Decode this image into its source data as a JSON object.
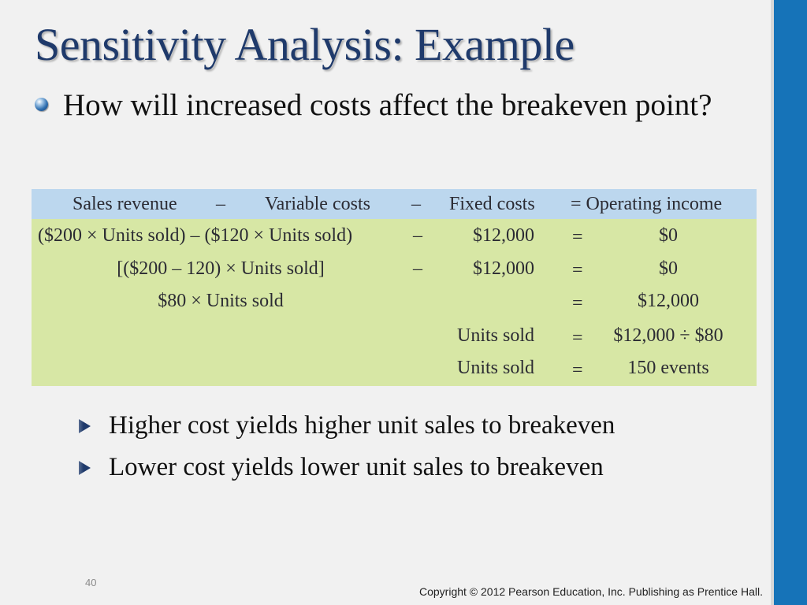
{
  "slide": {
    "title": "Sensitivity Analysis: Example",
    "main_bullet": "How will increased costs affect the breakeven point?",
    "equation_table": {
      "header": {
        "sales_revenue": "Sales revenue",
        "minus1": "–",
        "variable_costs": "Variable costs",
        "minus2": "–",
        "fixed_costs": "Fixed costs",
        "equals_operating": "= Operating income"
      },
      "rows": [
        {
          "left": "($200 × Units sold) – ($120 × Units sold)",
          "minus": "–",
          "fixed": "$12,000",
          "equals": "=",
          "result": "$0"
        },
        {
          "left": "[($200 – 120) × Units sold]",
          "minus": "–",
          "fixed": "$12,000",
          "equals": "=",
          "result": "$0"
        },
        {
          "left": "$80 × Units sold",
          "minus": "",
          "fixed": "",
          "equals": "=",
          "result": "$12,000"
        },
        {
          "left": "",
          "minus": "",
          "fixed": "Units sold",
          "equals": "=",
          "result": "$12,000 ÷ $80"
        },
        {
          "left": "",
          "minus": "",
          "fixed": "Units sold",
          "equals": "=",
          "result": "150 events"
        }
      ]
    },
    "sub_bullets": [
      "Higher cost yields higher unit sales to breakeven",
      "Lower cost yields lower unit sales to breakeven"
    ],
    "page_number": "40",
    "copyright": "Copyright © 2012 Pearson Education, Inc. Publishing as Prentice Hall."
  },
  "colors": {
    "title": "#1f3a6b",
    "right_bar": "#1673b8",
    "table_header": "#bcd7ee",
    "table_body": "#d7e7a5",
    "background": "#f1f1f1"
  }
}
